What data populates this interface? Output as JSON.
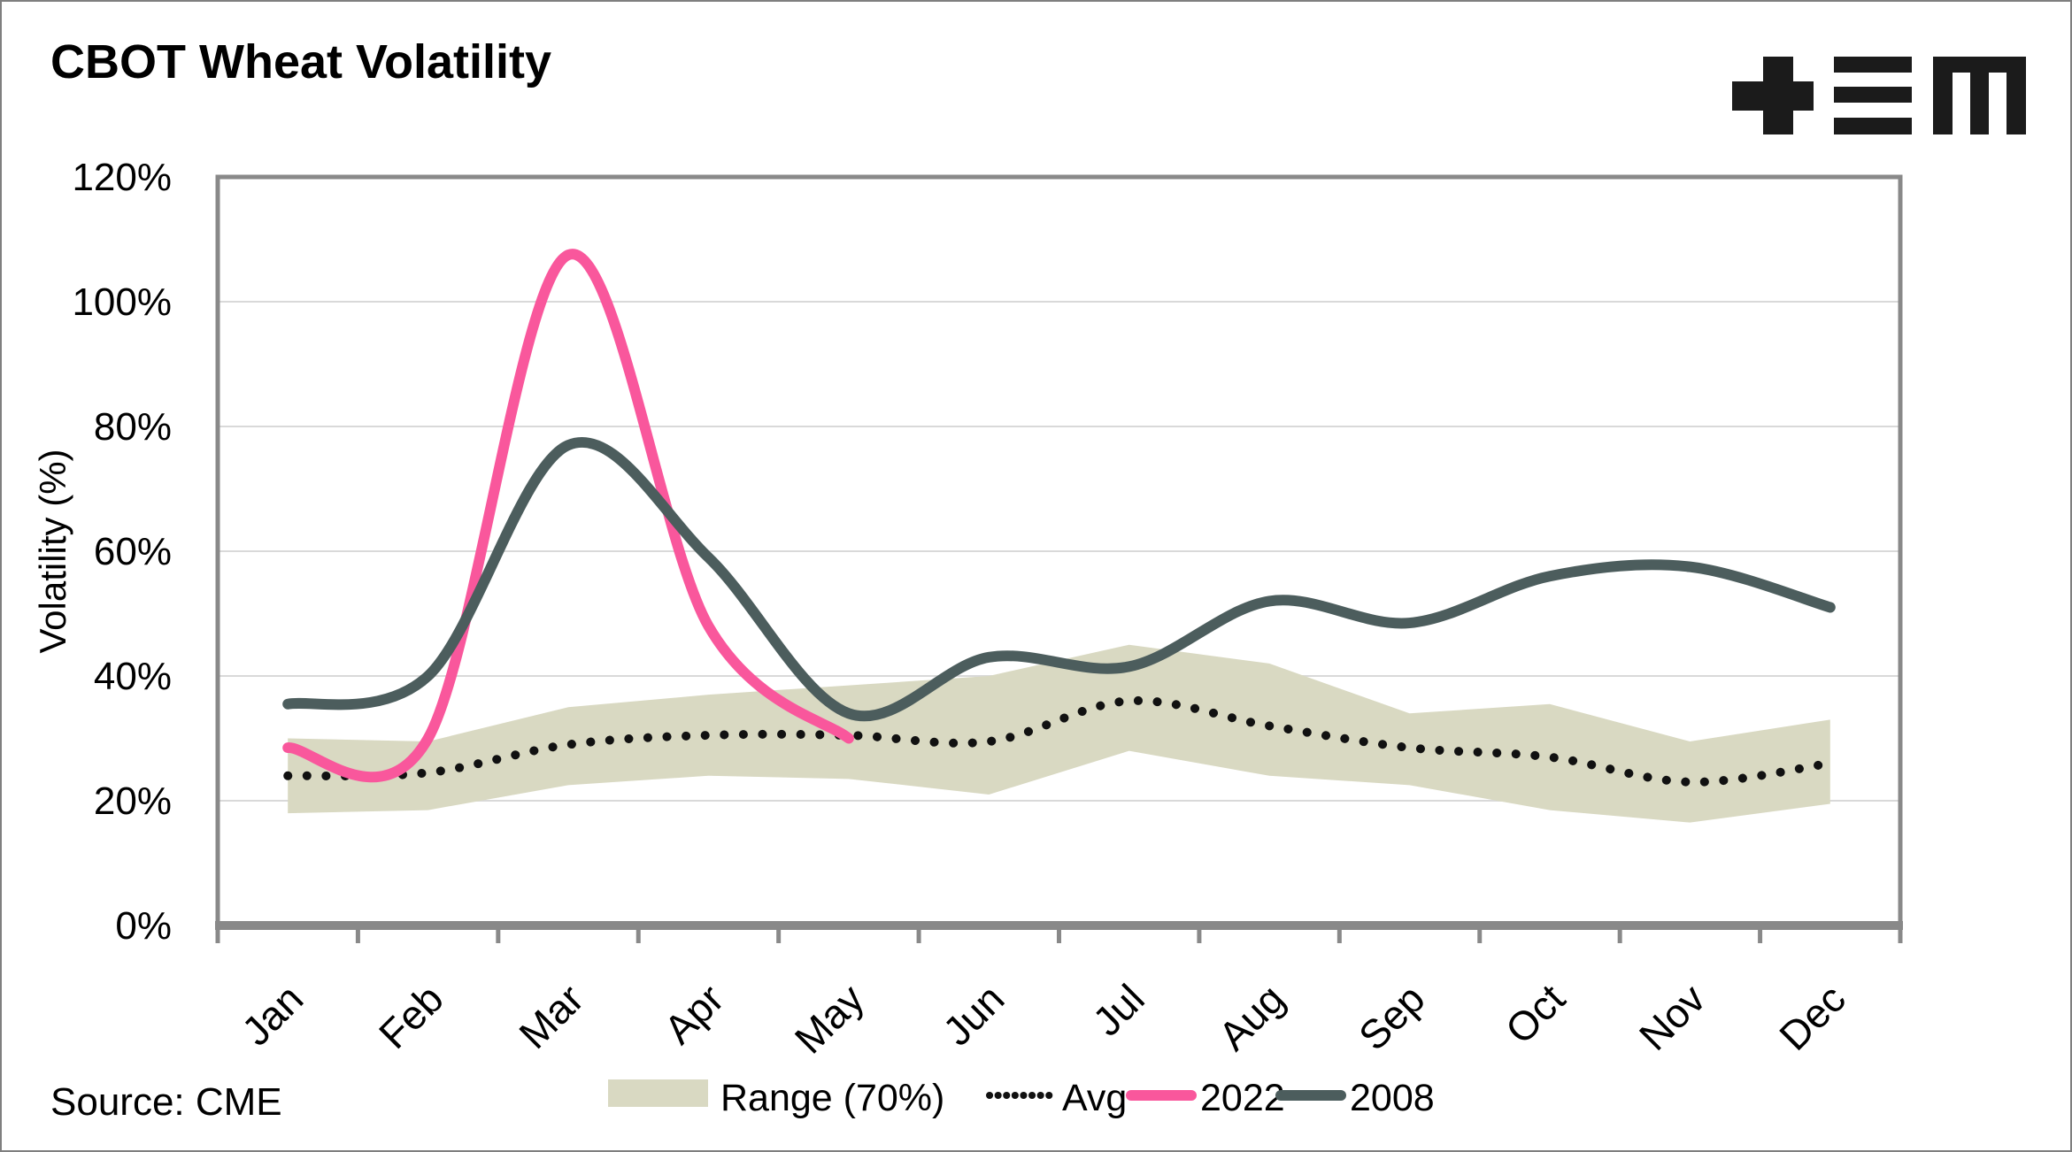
{
  "header": {
    "title": "CBOT Wheat Volatility",
    "logo": "plus-equals-m-logo"
  },
  "axes": {
    "y_title": "Volatility (%)",
    "y_tick_labels": [
      "0%",
      "20%",
      "40%",
      "60%",
      "80%",
      "100%",
      "120%"
    ]
  },
  "legend": {
    "range": "Range (70%)",
    "avg": "Avg",
    "y2022": "2022",
    "y2008": "2008"
  },
  "source": {
    "text": "Source: CME"
  },
  "colors": {
    "band": "#d9d9c2",
    "avg": "#111111",
    "y2022": "#f9579c",
    "y2008": "#4c5d5d",
    "gridline": "#d9d9d9",
    "axis": "#898989",
    "logo": "#1b1b1b"
  },
  "chart_data": {
    "type": "line",
    "title": "CBOT Wheat Volatility",
    "ylabel": "Volatility (%)",
    "ylim": [
      0,
      120
    ],
    "grid_step_pct": 20,
    "months": [
      "Jan",
      "Feb",
      "Mar",
      "Apr",
      "May",
      "Jun",
      "Jul",
      "Aug",
      "Sep",
      "Oct",
      "Nov",
      "Dec"
    ],
    "band": {
      "name": "Range (70%)",
      "top": [
        30,
        29.5,
        35,
        37,
        38.5,
        40,
        45,
        42,
        34,
        35.5,
        29.5,
        33
      ],
      "bottom": [
        18,
        18.5,
        22.5,
        24,
        23.5,
        21,
        28,
        24,
        22.5,
        18.5,
        16.5,
        19.5
      ]
    },
    "series": [
      {
        "name": "Avg",
        "style": "dotted",
        "values": [
          24,
          24.5,
          29,
          30.5,
          30.5,
          29.5,
          36,
          32,
          28.5,
          27,
          23,
          26
        ]
      },
      {
        "name": "2022",
        "style": "solid",
        "values": [
          28.5,
          30,
          107.5,
          48,
          30
        ]
      },
      {
        "name": "2008",
        "style": "solid",
        "values": [
          35.5,
          40,
          77,
          59,
          34,
          43,
          41.5,
          52,
          48.5,
          56,
          57.5,
          51
        ]
      }
    ],
    "legend_position": "bottom",
    "notes": "2022 series runs Jan-May only; band spans Jan-Dec"
  }
}
